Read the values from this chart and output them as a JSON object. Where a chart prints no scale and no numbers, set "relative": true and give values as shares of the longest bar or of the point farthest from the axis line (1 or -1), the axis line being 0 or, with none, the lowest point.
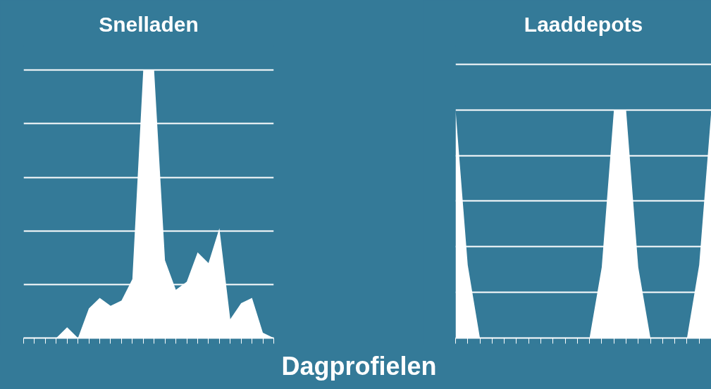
{
  "chart_data": [
    {
      "type": "area",
      "title": "Snelladen",
      "relative": true,
      "grid": "y",
      "color": "#ffffff",
      "categories": [
        null,
        null,
        null,
        null,
        null,
        null,
        null,
        null,
        null,
        null,
        null,
        null,
        null,
        null,
        null,
        null,
        null,
        null,
        null,
        null,
        null,
        null,
        null,
        null
      ],
      "values": [
        0,
        0,
        0,
        0,
        0.04,
        0,
        0.11,
        0.15,
        0.12,
        0.14,
        0.22,
        1,
        1,
        0.29,
        0.18,
        0.21,
        0.32,
        0.28,
        0.41,
        0.07,
        0.13,
        0.15,
        0.02,
        0
      ],
      "annotations": [
        "Dagprofielen"
      ]
    },
    {
      "type": "area",
      "title": "Laaddepots",
      "relative": true,
      "grid": "y",
      "color": "#ffffff",
      "categories": [
        null,
        null,
        null,
        null,
        null,
        null,
        null,
        null,
        null,
        null,
        null,
        null,
        null,
        null,
        null,
        null,
        null,
        null,
        null,
        null,
        null,
        null
      ],
      "values": [
        1,
        0.32,
        0,
        0,
        0,
        0,
        0,
        0,
        0,
        0,
        0,
        0,
        0.31,
        1,
        1,
        0.31,
        0,
        0,
        0,
        0,
        0.32,
        1
      ]
    }
  ]
}
